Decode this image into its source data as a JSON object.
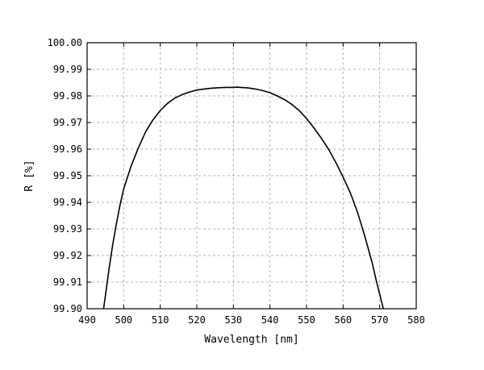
{
  "chart_data": {
    "type": "line",
    "title": "",
    "xlabel": "Wavelength [nm]",
    "ylabel": "R [%]",
    "xlim": [
      490,
      580
    ],
    "ylim": [
      99.9,
      100.0
    ],
    "grid": true,
    "x_ticks": [
      "490",
      "500",
      "510",
      "520",
      "530",
      "540",
      "550",
      "560",
      "570",
      "580"
    ],
    "y_ticks": [
      "99.90",
      "99.91",
      "99.92",
      "99.93",
      "99.94",
      "99.95",
      "99.96",
      "99.97",
      "99.98",
      "99.99",
      "100.00"
    ],
    "series": [
      {
        "x": [
          494.5,
          495,
          496,
          497,
          498,
          499,
          500,
          502,
          504,
          506,
          508,
          510,
          512,
          514,
          516,
          518,
          520,
          522,
          524,
          526,
          528,
          530,
          531,
          532,
          534,
          536,
          538,
          540,
          542,
          544,
          546,
          548,
          550,
          552,
          554,
          556,
          558,
          560,
          562,
          564,
          566,
          568,
          569,
          570,
          571,
          572
        ],
        "y": [
          99.9,
          99.905,
          99.915,
          99.924,
          99.932,
          99.939,
          99.945,
          99.9535,
          99.9605,
          99.9665,
          99.971,
          99.9745,
          99.9772,
          99.9792,
          99.9805,
          99.9815,
          99.9822,
          99.9826,
          99.9829,
          99.9831,
          99.9832,
          99.9832,
          99.9833,
          99.9832,
          99.983,
          99.9826,
          99.982,
          99.9812,
          99.98,
          99.9786,
          99.9768,
          99.9745,
          99.9715,
          99.968,
          99.9642,
          99.96,
          99.955,
          99.9495,
          99.9435,
          99.936,
          99.927,
          99.917,
          99.911,
          99.9055,
          99.9,
          99.895
        ]
      }
    ]
  }
}
